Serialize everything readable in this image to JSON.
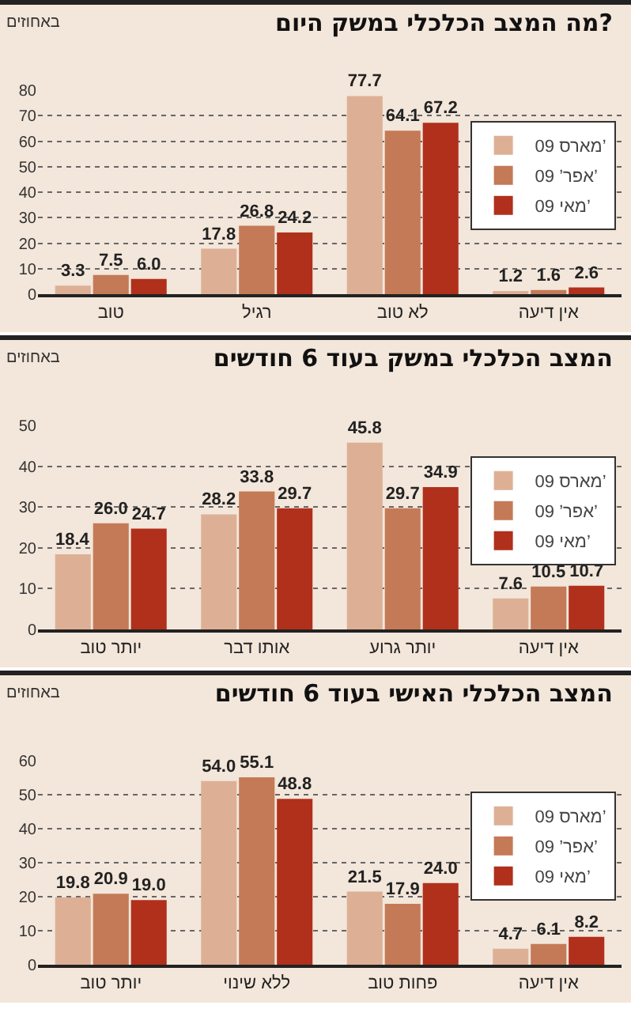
{
  "chart_data": [
    {
      "type": "bar",
      "title": "מה המצב הכלכלי במשק היום?",
      "ylabel": "באחוזים",
      "categories": [
        "טוב",
        "רגיל",
        "לא טוב",
        "אין דיעה"
      ],
      "series": [
        {
          "name": "מארס 09’",
          "color": "#ddb096",
          "values": [
            3.3,
            17.8,
            77.7,
            1.2
          ],
          "value_labels": [
            "3.3",
            "17.8",
            "77.7",
            "1.2"
          ]
        },
        {
          "name": "אפר’ 09’",
          "color": "#c47a56",
          "values": [
            7.5,
            26.8,
            64.1,
            1.6
          ],
          "value_labels": [
            "7.5",
            "26.8",
            "64.1",
            "1.6"
          ]
        },
        {
          "name": "מאי 09’",
          "color": "#b0301c",
          "values": [
            6.0,
            24.2,
            67.2,
            2.6
          ],
          "value_labels": [
            "6.0",
            "24.2",
            "67.2",
            "2.6"
          ]
        }
      ],
      "ylim": [
        0,
        80
      ],
      "yticks": [
        0,
        10,
        20,
        30,
        40,
        50,
        60,
        70,
        80
      ],
      "grid": "y",
      "legend": "top right"
    },
    {
      "type": "bar",
      "title": "המצב הכלכלי במשק בעוד 6 חודשים",
      "ylabel": "באחוזים",
      "categories": [
        "יותר טוב",
        "אותו דבר",
        "יותר גרוע",
        "אין דיעה"
      ],
      "series": [
        {
          "name": "מארס 09’",
          "color": "#ddb096",
          "values": [
            18.4,
            28.2,
            45.8,
            7.6
          ],
          "value_labels": [
            "18.4",
            "28.2",
            "45.8",
            "7.6"
          ]
        },
        {
          "name": "אפר’ 09’",
          "color": "#c47a56",
          "values": [
            26.0,
            33.8,
            29.7,
            10.5
          ],
          "value_labels": [
            "26.0",
            "33.8",
            "29.7",
            "10.5"
          ]
        },
        {
          "name": "מאי 09’",
          "color": "#b0301c",
          "values": [
            24.7,
            29.7,
            34.9,
            10.7
          ],
          "value_labels": [
            "24.7",
            "29.7",
            "34.9",
            "10.7"
          ]
        }
      ],
      "ylim": [
        0,
        50
      ],
      "yticks": [
        0,
        10,
        20,
        30,
        40,
        50
      ],
      "grid": "y",
      "legend": "top right"
    },
    {
      "type": "bar",
      "title": "המצב הכלכלי האישי בעוד 6 חודשים",
      "ylabel": "באחוזים",
      "categories": [
        "יותר טוב",
        "ללא שינוי",
        "פחות טוב",
        "אין דיעה"
      ],
      "series": [
        {
          "name": "מארס 09’",
          "color": "#ddb096",
          "values": [
            19.8,
            54.0,
            21.5,
            4.7
          ],
          "value_labels": [
            "19.8",
            "54.0",
            "21.5",
            "4.7"
          ]
        },
        {
          "name": "אפר’ 09’",
          "color": "#c47a56",
          "values": [
            20.9,
            55.1,
            17.9,
            6.1
          ],
          "value_labels": [
            "20.9",
            "55.1",
            "17.9",
            "6.1"
          ]
        },
        {
          "name": "מאי 09’",
          "color": "#b0301c",
          "values": [
            19.0,
            48.8,
            24.0,
            8.2
          ],
          "value_labels": [
            "19.0",
            "48.8",
            "24.0",
            "8.2"
          ]
        }
      ],
      "ylim": [
        0,
        60
      ],
      "yticks": [
        0,
        10,
        20,
        30,
        40,
        50,
        60
      ],
      "grid": "y",
      "legend": "top right"
    }
  ]
}
